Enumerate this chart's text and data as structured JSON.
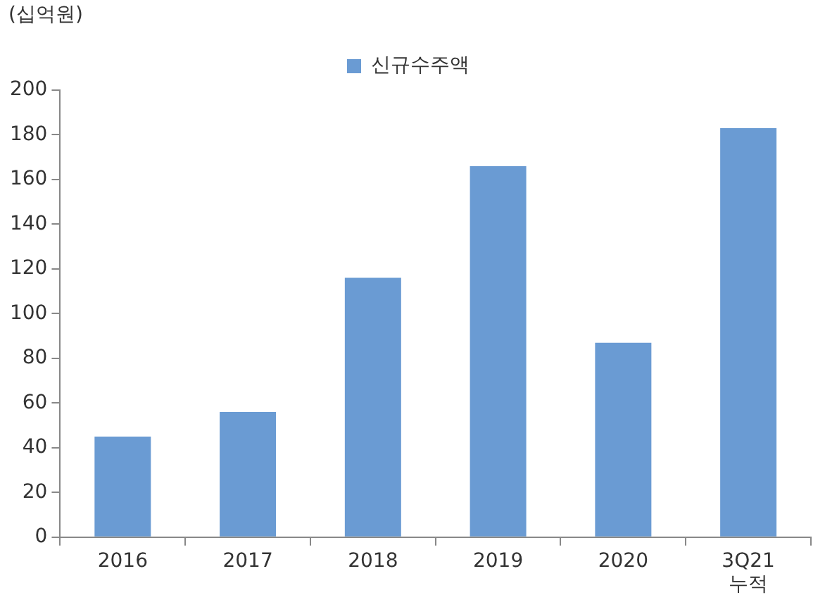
{
  "chart_data": {
    "type": "bar",
    "ylabel": "(십억원)",
    "categories": [
      "2016",
      "2017",
      "2018",
      "2019",
      "2020",
      "3Q21\n누적"
    ],
    "series": [
      {
        "name": "신규수주액",
        "color": "#6a9bd3",
        "values": [
          45,
          56,
          116,
          166,
          87,
          183
        ]
      }
    ],
    "ylim": [
      0,
      200
    ],
    "yticks": [
      0,
      20,
      40,
      60,
      80,
      100,
      120,
      140,
      160,
      180,
      200
    ],
    "grid": false,
    "legend": "top"
  }
}
